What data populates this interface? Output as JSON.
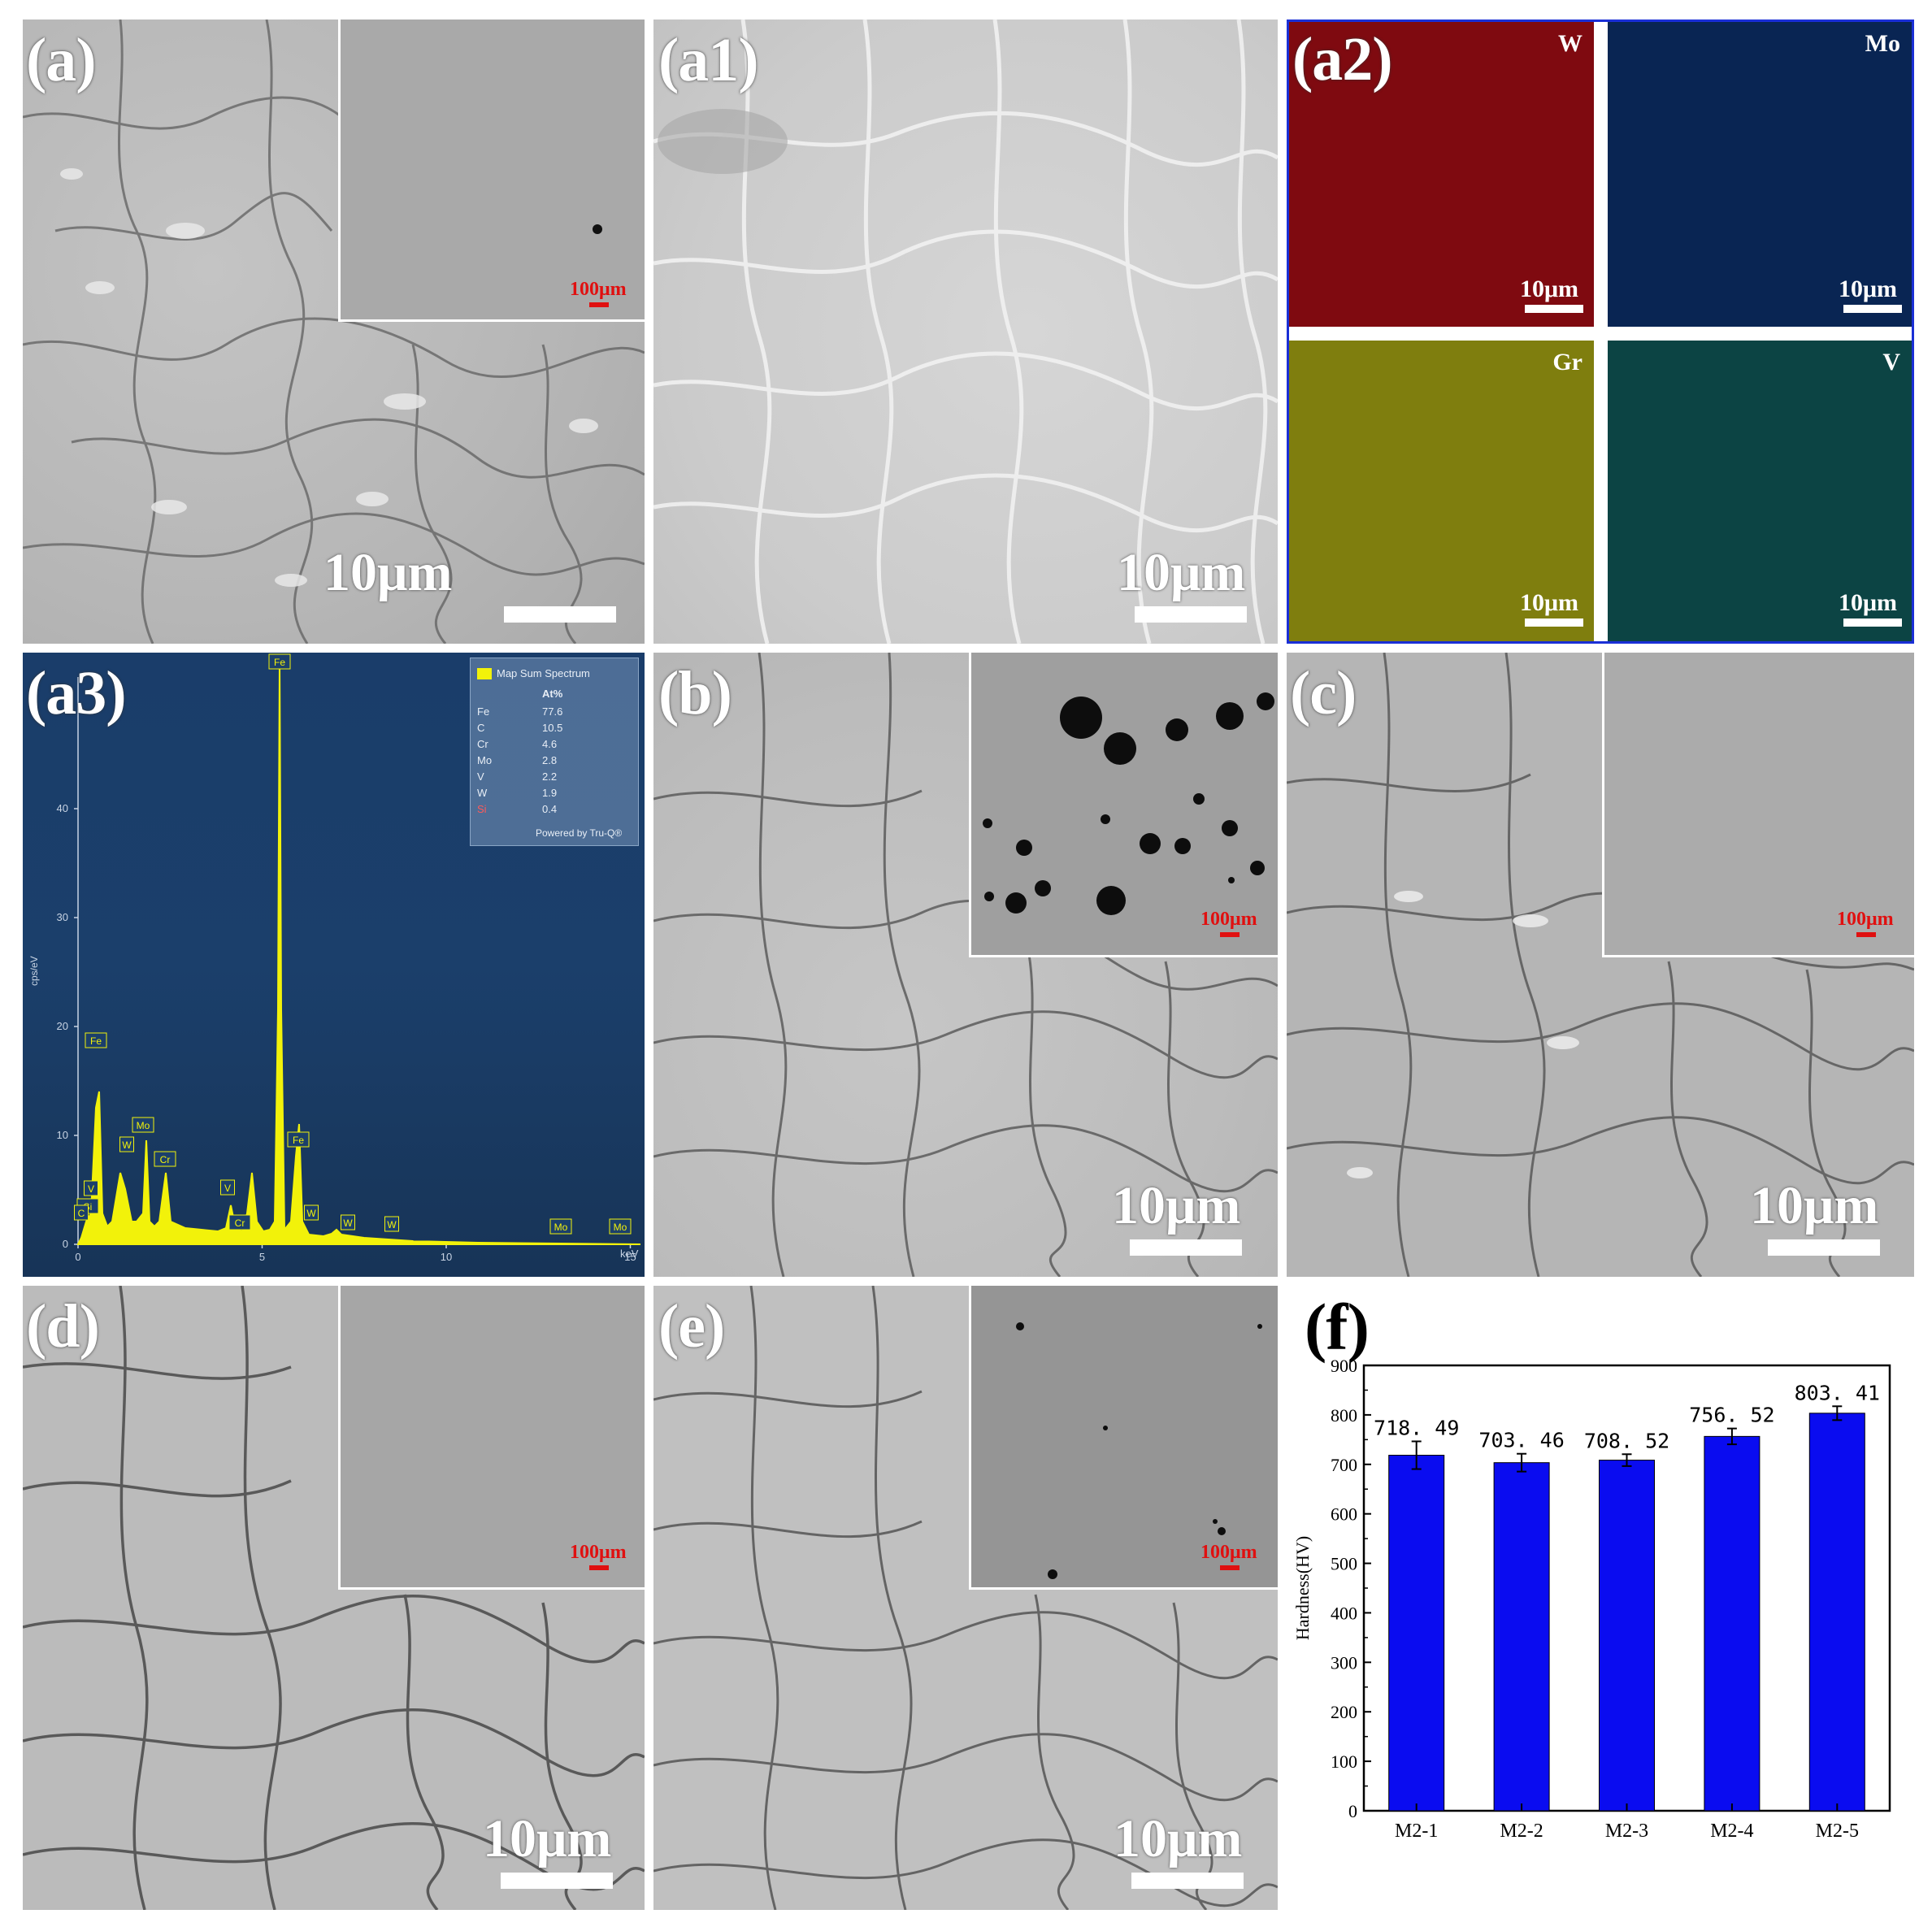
{
  "panels": {
    "a": {
      "label": "(a)",
      "scale": "10μm",
      "inset_scale": "100μm"
    },
    "a1": {
      "label": "(a1)",
      "scale": "10μm"
    },
    "a2": {
      "label": "(a2)",
      "maps": [
        {
          "element": "W",
          "scale": "10μm",
          "color": "#8b0a10"
        },
        {
          "element": "Mo",
          "scale": "10μm",
          "color": "#0b2a5c"
        },
        {
          "element": "Gr",
          "scale": "10μm",
          "color": "#8c8a10"
        },
        {
          "element": "V",
          "scale": "10μm",
          "color": "#0d4a4a"
        }
      ]
    },
    "a3": {
      "label": "(a3)",
      "legend_title": "Map Sum Spectrum",
      "legend_header": "At%",
      "legend_rows": [
        {
          "el": "Fe",
          "val": "77.6"
        },
        {
          "el": "C",
          "val": "10.5"
        },
        {
          "el": "Cr",
          "val": "4.6"
        },
        {
          "el": "Mo",
          "val": "2.8"
        },
        {
          "el": "V",
          "val": "2.2"
        },
        {
          "el": "W",
          "val": "1.9"
        },
        {
          "el": "Si",
          "val": "0.4"
        }
      ],
      "legend_footer": "Powered by Tru-Q®",
      "y_ticks": [
        "0",
        "10",
        "20",
        "30",
        "40"
      ],
      "x_ticks": [
        "0",
        "5",
        "10",
        "15"
      ],
      "y_unit": "cps/eV",
      "x_unit": "keV",
      "peak_labels": [
        "Fe",
        "Fe",
        "Fe",
        "V",
        "Cr",
        "Si",
        "W",
        "Mo",
        "V",
        "Cr",
        "W",
        "W",
        "W",
        "Mo",
        "Mo",
        "C"
      ]
    },
    "b": {
      "label": "(b)",
      "scale": "10μm",
      "inset_scale": "100μm"
    },
    "c": {
      "label": "(c)",
      "scale": "10μm",
      "inset_scale": "100μm"
    },
    "d": {
      "label": "(d)",
      "scale": "10μm",
      "inset_scale": "100μm"
    },
    "e": {
      "label": "(e)",
      "scale": "10μm",
      "inset_scale": "100μm"
    },
    "f": {
      "label": "(f)"
    }
  },
  "chart_data": {
    "type": "bar",
    "categories": [
      "M2-1",
      "M2-2",
      "M2-3",
      "M2-4",
      "M2-5"
    ],
    "values": [
      718.49,
      703.46,
      708.52,
      756.52,
      803.41
    ],
    "value_labels": [
      "718. 49",
      "703. 46",
      "708. 52",
      "756. 52",
      "803. 41"
    ],
    "errors": [
      28,
      18,
      12,
      16,
      14
    ],
    "ylabel": "Hardness(HV)",
    "xlabel": "",
    "ylim": [
      0,
      900
    ],
    "yticks": [
      0,
      100,
      200,
      300,
      400,
      500,
      600,
      700,
      800,
      900
    ],
    "bar_color": "#0a0cf0"
  },
  "colors": {
    "inset_scale": "#e01010",
    "map_frame": "#1a2fd6",
    "spectrum_peak": "#f2f20a"
  }
}
